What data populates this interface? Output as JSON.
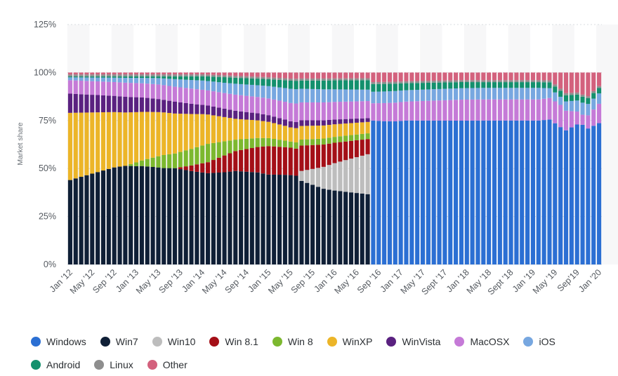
{
  "chart_data": {
    "type": "bar",
    "stacked": true,
    "title": "",
    "xlabel": "",
    "ylabel": "Market share",
    "ylim": [
      0,
      125
    ],
    "yticks": [
      "0%",
      "25%",
      "50%",
      "75%",
      "100%",
      "125%"
    ],
    "ytick_values": [
      0,
      25,
      50,
      75,
      100,
      125
    ],
    "x_tick_labels": [
      "Jan '12",
      "May '12",
      "Sep '12",
      "Jan '13",
      "May '13",
      "Sep '13",
      "Jan '14",
      "May '14",
      "Sep '14",
      "Jan '15",
      "May '15",
      "Sep '15",
      "Jan '16",
      "May '16",
      "Sep '16",
      "Jan '17",
      "May '17",
      "Sept '17",
      "Jan '18",
      "May '18",
      "Sept '18",
      "Jan '19",
      "May '19",
      "Sep'19",
      "Jan '20"
    ],
    "x_tick_months": [
      "2012-01",
      "2012-05",
      "2012-09",
      "2013-01",
      "2013-05",
      "2013-09",
      "2014-01",
      "2014-05",
      "2014-09",
      "2015-01",
      "2015-05",
      "2015-09",
      "2016-01",
      "2016-05",
      "2016-09",
      "2017-01",
      "2017-05",
      "2017-09",
      "2018-01",
      "2018-05",
      "2018-09",
      "2019-01",
      "2019-05",
      "2019-09",
      "2020-01"
    ],
    "grid": "horizontal dashed",
    "legend_position": "bottom",
    "period_1": {
      "months": [
        "2012-01",
        "2016-07"
      ],
      "series": {
        "Win7": [
          [
            0,
            44
          ],
          [
            8,
            52
          ],
          [
            13,
            53
          ],
          [
            22,
            50
          ],
          [
            34,
            49
          ],
          [
            39,
            45
          ],
          [
            46,
            38
          ],
          [
            54,
            37
          ]
        ],
        "Win10": [
          [
            0,
            0
          ],
          [
            41,
            0
          ],
          [
            42,
            5
          ],
          [
            48,
            14
          ],
          [
            54,
            21
          ]
        ],
        "Win 8.1": [
          [
            0,
            0
          ],
          [
            19,
            0
          ],
          [
            21,
            2
          ],
          [
            28,
            9
          ],
          [
            36,
            15
          ],
          [
            44,
            12
          ],
          [
            54,
            8
          ]
        ],
        "Win 8": [
          [
            0,
            0
          ],
          [
            10,
            0
          ],
          [
            17,
            7
          ],
          [
            25,
            10
          ],
          [
            30,
            6
          ],
          [
            40,
            3
          ],
          [
            54,
            3
          ]
        ],
        "WinXP": [
          [
            0,
            35
          ],
          [
            12,
            27
          ],
          [
            24,
            17
          ],
          [
            30,
            11
          ],
          [
            40,
            7
          ],
          [
            54,
            6
          ]
        ],
        "WinVista": [
          [
            0,
            10
          ],
          [
            12,
            8
          ],
          [
            24,
            5
          ],
          [
            40,
            3
          ],
          [
            54,
            2
          ]
        ],
        "MacOSX": [
          [
            0,
            7
          ],
          [
            20,
            8
          ],
          [
            40,
            9
          ],
          [
            54,
            9
          ]
        ],
        "iOS": [
          [
            0,
            1.5
          ],
          [
            14,
            3
          ],
          [
            24,
            5
          ],
          [
            40,
            7
          ],
          [
            54,
            6
          ]
        ],
        "Android": [
          [
            0,
            0.5
          ],
          [
            16,
            1
          ],
          [
            28,
            3
          ],
          [
            40,
            4
          ],
          [
            54,
            5
          ]
        ],
        "Linux": [
          [
            0,
            1
          ],
          [
            54,
            1
          ]
        ],
        "Other": [
          [
            0,
            1
          ],
          [
            24,
            1
          ],
          [
            40,
            3
          ],
          [
            54,
            3
          ]
        ]
      }
    },
    "period_2": {
      "months": [
        "2016-08",
        "2020-01"
      ],
      "series": {
        "Windows": [
          [
            0,
            75
          ],
          [
            2,
            74
          ],
          [
            4,
            74
          ],
          [
            6,
            76
          ],
          [
            20,
            75
          ],
          [
            26,
            75
          ],
          [
            30,
            75
          ],
          [
            32,
            74
          ],
          [
            35,
            65
          ],
          [
            37,
            70
          ],
          [
            39,
            69
          ],
          [
            41,
            73
          ],
          [
            44,
            72
          ],
          [
            47,
            73
          ],
          [
            50,
            73
          ],
          [
            52,
            72
          ]
        ],
        "MacOSX": [
          [
            0,
            9
          ],
          [
            6,
            10
          ],
          [
            16,
            11
          ],
          [
            30,
            11
          ],
          [
            34,
            11
          ],
          [
            38,
            5
          ],
          [
            41,
            10
          ],
          [
            46,
            12
          ],
          [
            52,
            16
          ]
        ],
        "iOS": [
          [
            0,
            6
          ],
          [
            16,
            6
          ],
          [
            30,
            6
          ],
          [
            34,
            4
          ],
          [
            38,
            6
          ],
          [
            52,
            3
          ]
        ],
        "Android": [
          [
            0,
            4
          ],
          [
            20,
            3
          ],
          [
            34,
            3
          ],
          [
            38,
            3
          ],
          [
            52,
            2
          ]
        ],
        "Linux": [
          [
            0,
            1
          ],
          [
            52,
            1
          ]
        ],
        "Other": [
          [
            0,
            5
          ],
          [
            16,
            4
          ],
          [
            28,
            4
          ],
          [
            32,
            4
          ],
          [
            35,
            10
          ],
          [
            37,
            10
          ],
          [
            39,
            12
          ],
          [
            41,
            7
          ],
          [
            52,
            3
          ]
        ]
      }
    },
    "legend": [
      {
        "name": "Windows",
        "color": "#2b6fd3"
      },
      {
        "name": "Win7",
        "color": "#0f1f36"
      },
      {
        "name": "Win10",
        "color": "#bdbdbd"
      },
      {
        "name": "Win 8.1",
        "color": "#a40f17"
      },
      {
        "name": "Win 8",
        "color": "#7cb82f"
      },
      {
        "name": "WinXP",
        "color": "#ecb528"
      },
      {
        "name": "WinVista",
        "color": "#5a2180"
      },
      {
        "name": "MacOSX",
        "color": "#c57ad7"
      },
      {
        "name": "iOS",
        "color": "#77a7e0"
      },
      {
        "name": "Android",
        "color": "#13906d"
      },
      {
        "name": "Linux",
        "color": "#8e8e8e"
      },
      {
        "name": "Other",
        "color": "#d3617d"
      }
    ],
    "series_order_p1": [
      "Win7",
      "Win10",
      "Win 8.1",
      "Win 8",
      "WinXP",
      "WinVista",
      "MacOSX",
      "iOS",
      "Android",
      "Linux",
      "Other"
    ],
    "series_order_p2": [
      "Windows",
      "MacOSX",
      "iOS",
      "Android",
      "Linux",
      "Other"
    ]
  }
}
